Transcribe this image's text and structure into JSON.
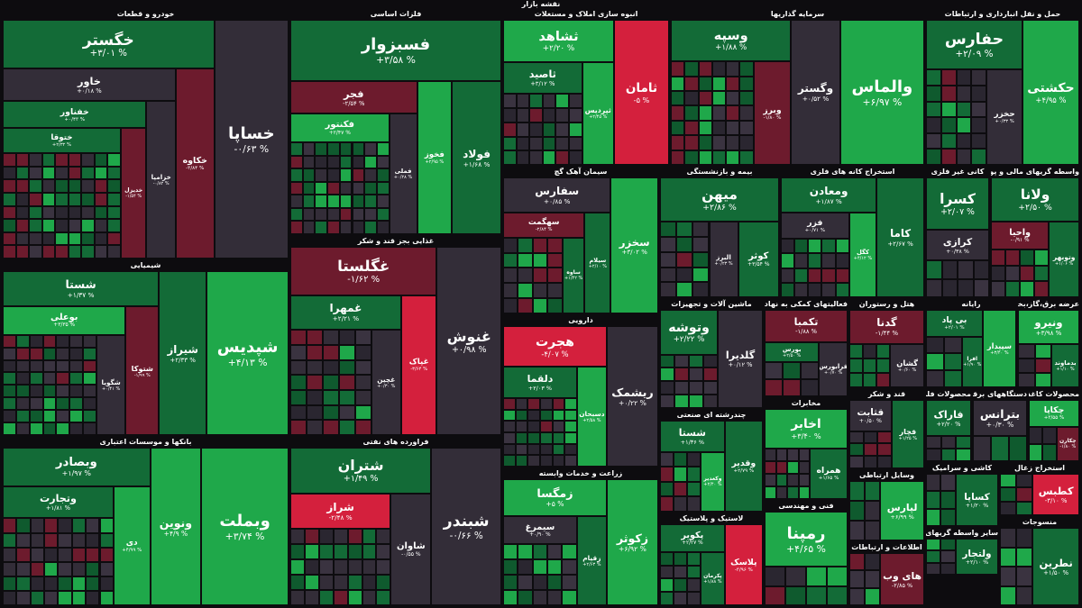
{
  "header": {
    "title": "نقشه بازار"
  },
  "sectors": [
    {
      "title": "خودرو و قطعات",
      "tiles": [
        {
          "label": "خساپا",
          "change": "-۰/۶۳ %",
          "color": "n"
        },
        {
          "label": "خگستر",
          "change": "+۳/۰۱ %",
          "color": "g1"
        },
        {
          "label": "خکاوه",
          "change": "-۳/۸۴ %",
          "color": "r1"
        },
        {
          "label": "خاور",
          "change": "+۰/۱۸ %",
          "color": "n"
        },
        {
          "label": "خزامیا",
          "change": "-۰/۸۲ %",
          "color": "n"
        },
        {
          "label": "خفناور",
          "change": "+۰/۴۳ %",
          "color": "g1"
        },
        {
          "label": "خدیزل",
          "change": "-۱/۵۴ %",
          "color": "r1"
        },
        {
          "label": "ختوقا",
          "change": "+۲/۳۲ %",
          "color": "g1"
        }
      ]
    },
    {
      "title": "فلزات اساسی",
      "tiles": [
        {
          "label": "فسبزوار",
          "change": "+۳/۵۸ %",
          "color": "g1"
        },
        {
          "label": "فولاد",
          "change": "+۱/۶۸ %",
          "color": "g1"
        },
        {
          "label": "فخوز",
          "change": "+۲/۹۵ %",
          "color": "g2"
        },
        {
          "label": "فجر",
          "change": "-۲/۵۴ %",
          "color": "r1"
        },
        {
          "label": "فملی",
          "change": "+۰/۲۸ %",
          "color": "n"
        },
        {
          "label": "فکنتور",
          "change": "+۲/۴۷ %",
          "color": "g2"
        }
      ]
    },
    {
      "title": "انبوه سازی املاک و مستغلات",
      "tiles": [
        {
          "label": "ثامان",
          "change": "-۵ %",
          "color": "r2"
        },
        {
          "label": "ثشاهد",
          "change": "+۲/۲۰ %",
          "color": "g2"
        },
        {
          "label": "ثپردیس",
          "change": "+۲/۴۵ %",
          "color": "g2"
        },
        {
          "label": "ثاصید",
          "change": "+۳/۱۲ %",
          "color": "g1"
        }
      ]
    },
    {
      "title": "سرمایه گذاریها",
      "tiles": [
        {
          "label": "والماس",
          "change": "+۶/۹۷ %",
          "color": "g2"
        },
        {
          "label": "وگستر",
          "change": "+۰/۵۲ %",
          "color": "n"
        },
        {
          "label": "وسپه",
          "change": "+۱/۸۸ %",
          "color": "g1"
        },
        {
          "label": "وبرز",
          "change": "-۱/۸۰ %",
          "color": "r1"
        }
      ]
    },
    {
      "title": "حمل و نقل انبارداری و ارتباطات",
      "tiles": [
        {
          "label": "حکشتی",
          "change": "+۴/۹۵ %",
          "color": "g2"
        },
        {
          "label": "حفارس",
          "change": "+۲/۰۹ %",
          "color": "g1"
        },
        {
          "label": "حخزر",
          "change": "+۰/۳۳ %",
          "color": "n"
        }
      ]
    },
    {
      "title": "شیمیایی",
      "tiles": [
        {
          "label": "شپدیس",
          "change": "+۴/۱۳ %",
          "color": "g2"
        },
        {
          "label": "شیراز",
          "change": "+۲/۳۳ %",
          "color": "g1"
        },
        {
          "label": "شستا",
          "change": "+۱/۳۷ %",
          "color": "g1"
        },
        {
          "label": "شتوکا",
          "change": "-۱/۹۹ %",
          "color": "r1"
        },
        {
          "label": "بوعلی",
          "change": "+۳/۳۵ %",
          "color": "g2"
        },
        {
          "label": "شگویا",
          "change": "+۰/۴۱ %",
          "color": "n"
        }
      ]
    },
    {
      "title": "غذایی بجز قند و شکر",
      "tiles": [
        {
          "label": "غنوش",
          "change": "+۰/۹۸ %",
          "color": "n"
        },
        {
          "label": "غگلستا",
          "change": "-۱/۶۲ %",
          "color": "r1"
        },
        {
          "label": "غپاک",
          "change": "-۳/۶۴ %",
          "color": "r2"
        },
        {
          "label": "غمهرا",
          "change": "+۲/۲۱ %",
          "color": "g1"
        },
        {
          "label": "غچین",
          "change": "+۰/۳۰ %",
          "color": "n"
        }
      ]
    },
    {
      "title": "سیمان آهک گچ",
      "tiles": [
        {
          "label": "سخزر",
          "change": "+۳/۰۲ %",
          "color": "g2"
        },
        {
          "label": "سفارس",
          "change": "+۰/۸۵ %",
          "color": "n"
        },
        {
          "label": "سیلام",
          "change": "+۲/۱۰ %",
          "color": "g1"
        },
        {
          "label": "سهگمت",
          "change": "-۲/۸۴ %",
          "color": "r1"
        },
        {
          "label": "ساوه",
          "change": "+۱/۴۲ %",
          "color": "g1"
        }
      ]
    },
    {
      "title": "بیمه و بازنشستگی",
      "tiles": [
        {
          "label": "میهن",
          "change": "+۲/۸۶ %",
          "color": "g1"
        },
        {
          "label": "کوثر",
          "change": "+۳/۵۴ %",
          "color": "g1"
        },
        {
          "label": "البرز",
          "change": "+۰/۲۳ %",
          "color": "n"
        }
      ]
    },
    {
      "title": "استخراج کانه های فلزی",
      "tiles": [
        {
          "label": "کاما",
          "change": "+۲/۶۷ %",
          "color": "g1"
        },
        {
          "label": "ومعادن",
          "change": "+۱/۸۷ %",
          "color": "g1"
        },
        {
          "label": "کگل",
          "change": "+۴/۱۲ %",
          "color": "g2"
        },
        {
          "label": "فزر",
          "change": "+۰/۷۱ %",
          "color": "n"
        }
      ]
    },
    {
      "title": "کانی غیر فلزی",
      "tiles": [
        {
          "label": "کسرا",
          "change": "+۲/۰۷ %",
          "color": "g1"
        },
        {
          "label": "کرازی",
          "change": "+۰/۳۸ %",
          "color": "n"
        }
      ]
    },
    {
      "title": "واسطه گریهای مالی و پولی",
      "tiles": [
        {
          "label": "ولانا",
          "change": "+۲/۵۰ %",
          "color": "g1"
        },
        {
          "label": "وتوبهر",
          "change": "+۱/۰۶ %",
          "color": "g1"
        },
        {
          "label": "واحیا",
          "change": "-۰/۹۱ %",
          "color": "r1"
        }
      ]
    },
    {
      "title": "بانکها و موسسات اعتباری",
      "tiles": [
        {
          "label": "وبملت",
          "change": "+۳/۷۴ %",
          "color": "g2"
        },
        {
          "label": "ونوین",
          "change": "+۴/۹ %",
          "color": "g2"
        },
        {
          "label": "وبصادر",
          "change": "+۱/۹۷ %",
          "color": "g1"
        },
        {
          "label": "دی",
          "change": "+۴/۹۹ %",
          "color": "g2"
        },
        {
          "label": "وتجارت",
          "change": "+۱/۸۱ %",
          "color": "g1"
        }
      ]
    },
    {
      "title": "فراورده های نفتی",
      "tiles": [
        {
          "label": "شبندر",
          "change": "-۰/۶۶ %",
          "color": "n"
        },
        {
          "label": "شتران",
          "change": "+۱/۴۹ %",
          "color": "g1"
        },
        {
          "label": "شاوان",
          "change": "-۰/۵۵ %",
          "color": "n"
        },
        {
          "label": "شراز",
          "change": "-۲/۴۸ %",
          "color": "r2"
        }
      ]
    },
    {
      "title": "دارویی",
      "tiles": [
        {
          "label": "ریشمک",
          "change": "+۰/۲۲ %",
          "color": "n"
        },
        {
          "label": "هجرت",
          "change": "-۴/۰۷ %",
          "color": "r2"
        },
        {
          "label": "دسبحان",
          "change": "+۲/۵۸ %",
          "color": "g2"
        },
        {
          "label": "دلقما",
          "change": "+۲/۰۳ %",
          "color": "g1"
        }
      ]
    },
    {
      "title": "ماشین آلات و تجهیزات",
      "tiles": [
        {
          "label": "گلدیرا",
          "change": "+۰/۱۲ %",
          "color": "n"
        },
        {
          "label": "وتوشه",
          "change": "+۲/۲۲ %",
          "color": "g1"
        }
      ]
    },
    {
      "title": "فعالیتهای کمکی به نهاد های مالی",
      "tiles": [
        {
          "label": "تکمبا",
          "change": "-۱/۸۸ %",
          "color": "r1"
        },
        {
          "label": "فرابورس",
          "change": "+۰/۷۰ %",
          "color": "n"
        },
        {
          "label": "بورس",
          "change": "+۲/۵۰ %",
          "color": "g1"
        }
      ]
    },
    {
      "title": "هتل و رستوران",
      "tiles": [
        {
          "label": "گدنا",
          "change": "-۱/۴۴ %",
          "color": "r1"
        },
        {
          "label": "گشان",
          "change": "+۰/۶۰ %",
          "color": "n"
        }
      ]
    },
    {
      "title": "رایانه",
      "tiles": [
        {
          "label": "سپیدار",
          "change": "+۳/۴۰ %",
          "color": "g2"
        },
        {
          "label": "بی پاد",
          "change": "+۲/۰۱ %",
          "color": "g1"
        },
        {
          "label": "افرا",
          "change": "+۱/۹۰ %",
          "color": "g1"
        }
      ]
    },
    {
      "title": "عرضه برق،گاز،بخار و آب",
      "tiles": [
        {
          "label": "ونیرو",
          "change": "+۳/۹۸ %",
          "color": "g2"
        },
        {
          "label": "بدماوند",
          "change": "+۱/۱۰ %",
          "color": "g1"
        }
      ]
    },
    {
      "title": "چندرشته ای صنعتی",
      "tiles": [
        {
          "label": "وقدیر",
          "change": "+۲/۷۹ %",
          "color": "g1"
        },
        {
          "label": "شستا",
          "change": "+۱/۳۶ %",
          "color": "g1"
        },
        {
          "label": "وکغدیر",
          "change": "+۲/۴۰ %",
          "color": "g2"
        }
      ]
    },
    {
      "title": "زراعت و خدمات وابسته",
      "tiles": [
        {
          "label": "زکوثر",
          "change": "+۶/۹۲ %",
          "color": "g2"
        },
        {
          "label": "زمگسا",
          "change": "+۵ %",
          "color": "g2"
        },
        {
          "label": "زقیام",
          "change": "+۲/۶۳ %",
          "color": "g1"
        },
        {
          "label": "سیمرغ",
          "change": "+۰/۹۰ %",
          "color": "n"
        }
      ]
    },
    {
      "title": "لاستیک و پلاستیک",
      "tiles": [
        {
          "label": "پلاسک",
          "change": "-۳/۹۶ %",
          "color": "r2"
        },
        {
          "label": "پکویر",
          "change": "+۲/۲۷ %",
          "color": "g1"
        },
        {
          "label": "پکرمان",
          "change": "+۱/۸۸ %",
          "color": "g1"
        }
      ]
    },
    {
      "title": "مخابرات",
      "tiles": [
        {
          "label": "اخابر",
          "change": "+۳/۴۰ %",
          "color": "g2"
        },
        {
          "label": "همراه",
          "change": "+۱/۶۵ %",
          "color": "g1"
        }
      ]
    },
    {
      "title": "قند و شکر",
      "tiles": [
        {
          "label": "قچار",
          "change": "+۱/۲۵ %",
          "color": "g1"
        },
        {
          "label": "قثابت",
          "change": "+۰/۵۰ %",
          "color": "n"
        }
      ]
    },
    {
      "title": "محصولات فلزی",
      "tiles": [
        {
          "label": "فاراک",
          "change": "+۲/۲۰ %",
          "color": "g1"
        }
      ]
    },
    {
      "title": "دستگاههای برقی",
      "tiles": [
        {
          "label": "بترانس",
          "change": "+۰/۳۰ %",
          "color": "n"
        }
      ]
    },
    {
      "title": "محصولات کاغذی",
      "tiles": [
        {
          "label": "چکاپا",
          "change": "+۳/۵۵ %",
          "color": "g2"
        },
        {
          "label": "چکارن",
          "change": "-۱/۸۰ %",
          "color": "r1"
        }
      ]
    },
    {
      "title": "وسایل ارتباطی",
      "tiles": [
        {
          "label": "لپارس",
          "change": "+۶/۹۹ %",
          "color": "g2"
        }
      ]
    },
    {
      "title": "فنی و مهندسی",
      "tiles": [
        {
          "label": "رمپنا",
          "change": "+۴/۶۵ %",
          "color": "g2"
        }
      ]
    },
    {
      "title": "اطلاعات و ارتباطات",
      "tiles": [
        {
          "label": "های وب",
          "change": "-۲/۸۵ %",
          "color": "r1"
        }
      ]
    },
    {
      "title": "کاشی و سرامیک",
      "tiles": [
        {
          "label": "کساپا",
          "change": "+۱/۲۰ %",
          "color": "g1"
        }
      ]
    },
    {
      "title": "سایر واسطه گریهای مالی",
      "tiles": [
        {
          "label": "ولتجار",
          "change": "+۲/۱۰ %",
          "color": "g1"
        }
      ]
    },
    {
      "title": "استخراج زغال",
      "tiles": [
        {
          "label": "کطبس",
          "change": "-۳/۱۰ %",
          "color": "r2"
        }
      ]
    },
    {
      "title": "منسوجات",
      "tiles": [
        {
          "label": "نطرین",
          "change": "+۱/۵۰ %",
          "color": "g1"
        }
      ]
    }
  ]
}
